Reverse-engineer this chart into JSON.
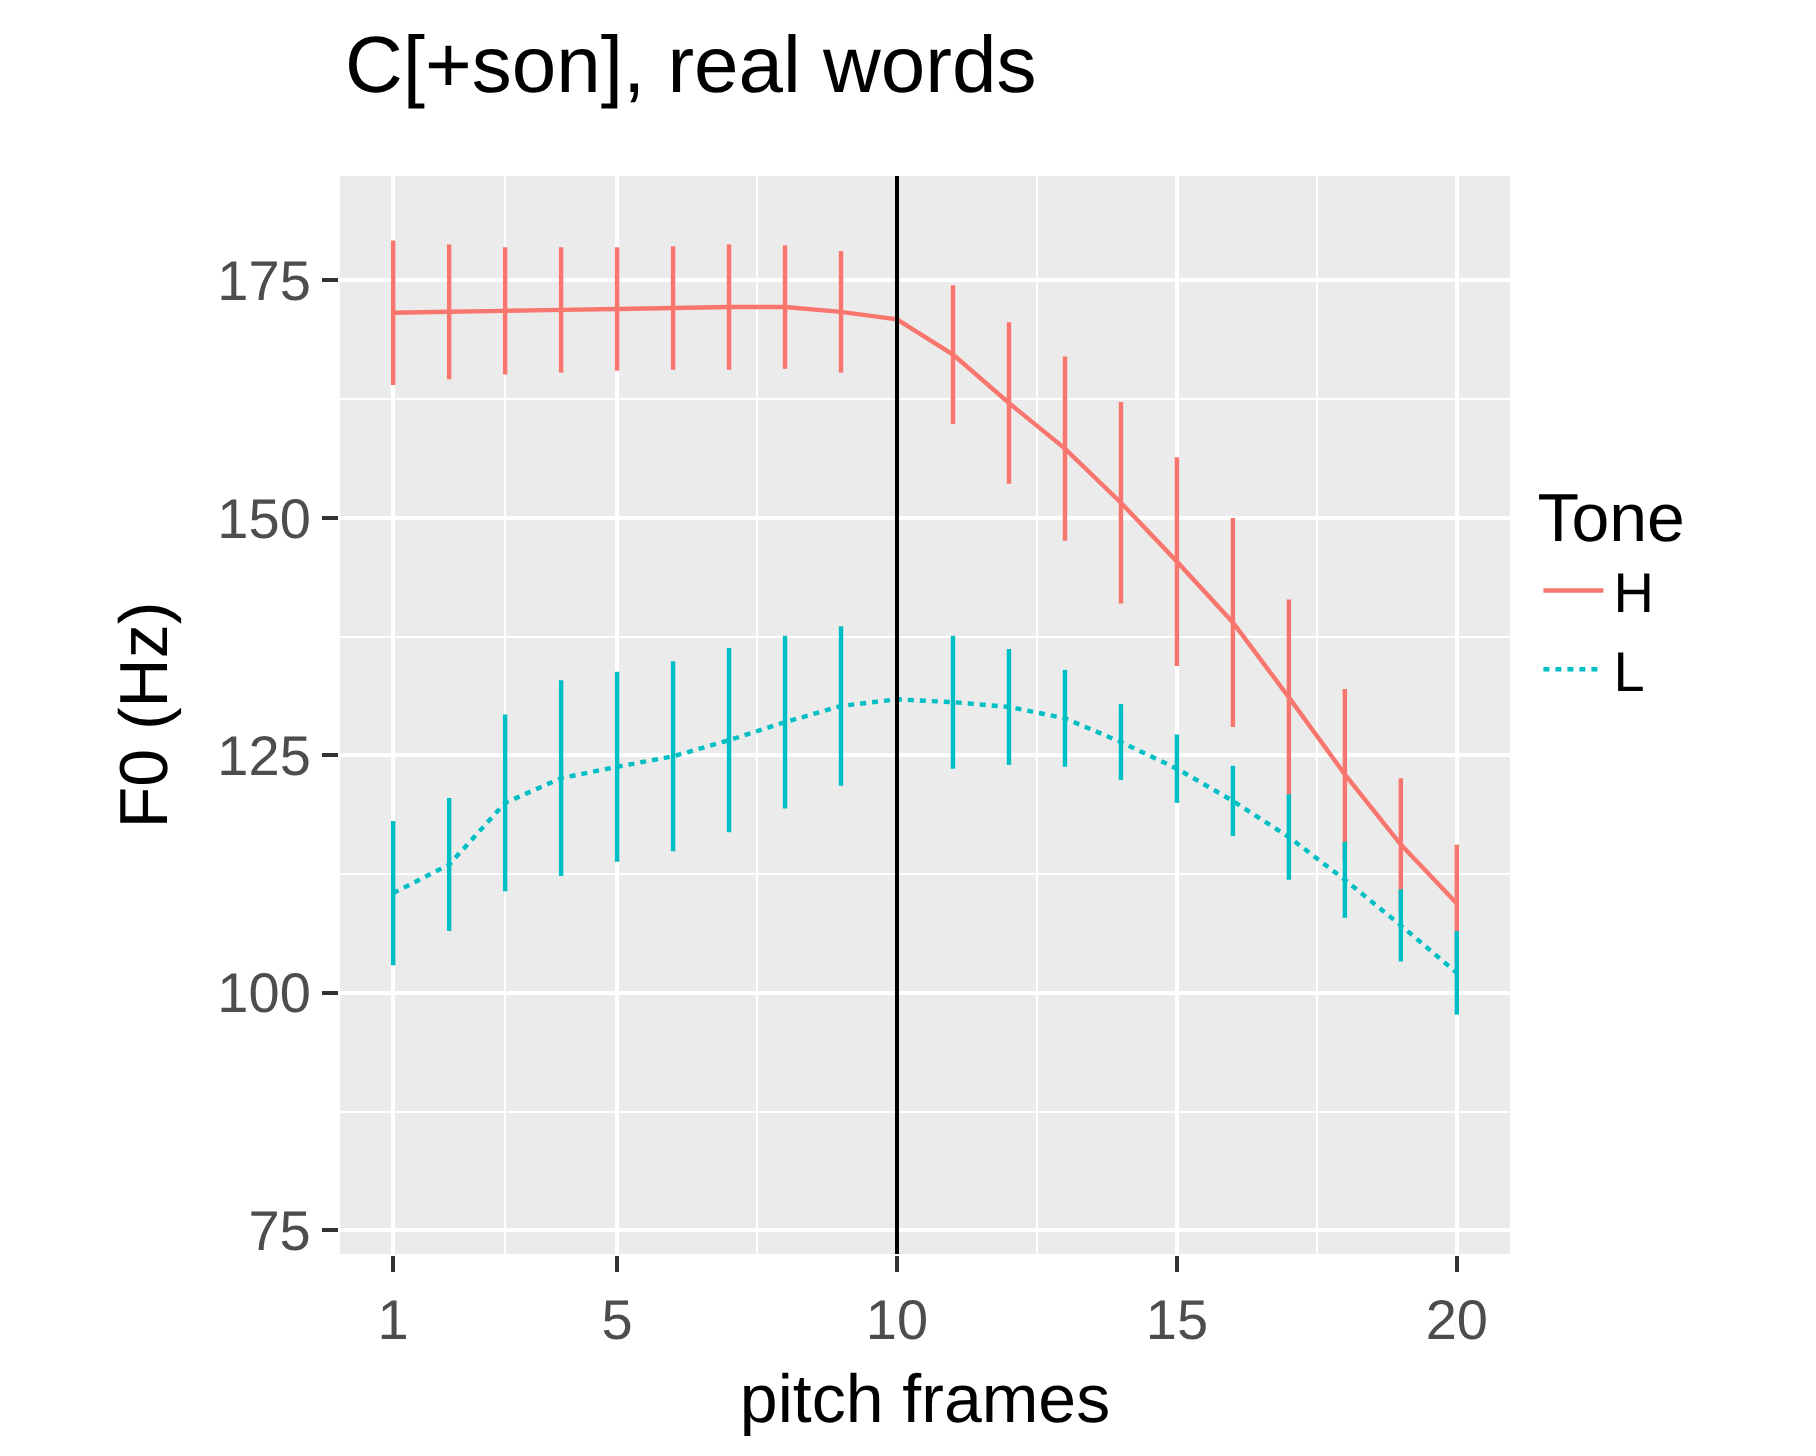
{
  "chart_data": {
    "type": "line",
    "title": "C[+son], real words",
    "xlabel": "pitch frames",
    "ylabel": "F0 (Hz)",
    "legend_title": "Tone",
    "x": [
      1,
      2,
      3,
      4,
      5,
      6,
      7,
      8,
      9,
      10,
      11,
      12,
      13,
      14,
      15,
      16,
      17,
      18,
      19,
      20
    ],
    "series": [
      {
        "name": "H",
        "color": "#f8766d",
        "line_style": "solid",
        "values": [
          171.6,
          171.7,
          171.8,
          171.9,
          172.0,
          172.1,
          172.2,
          172.2,
          171.7,
          170.9,
          167.2,
          162.1,
          157.3,
          151.6,
          145.4,
          139.0,
          131.1,
          123.0,
          115.6,
          109.4
        ],
        "errors": [
          7.6,
          7.1,
          6.7,
          6.6,
          6.5,
          6.5,
          6.6,
          6.5,
          6.4,
          null,
          7.3,
          8.5,
          9.7,
          10.6,
          11,
          11,
          10.3,
          9,
          7,
          6.2
        ]
      },
      {
        "name": "L",
        "color": "#00bfc4",
        "line_style": "dotted",
        "values": [
          110.5,
          113.5,
          120.0,
          122.6,
          123.8,
          124.9,
          126.6,
          128.5,
          130.2,
          130.9,
          130.6,
          130.1,
          128.9,
          126.4,
          123.6,
          120.2,
          116.4,
          111.9,
          107.1,
          102.1
        ],
        "errors": [
          7.6,
          7,
          9.3,
          10.3,
          10,
          10,
          9.7,
          9.1,
          8.4,
          null,
          7,
          6.1,
          5.1,
          4,
          3.6,
          3.7,
          4.5,
          4,
          3.8,
          4.4
        ]
      }
    ],
    "xlim": [
      0.05,
      20.95
    ],
    "xticks": [
      1,
      5,
      10,
      15,
      20
    ],
    "ylim": [
      72.5,
      186
    ],
    "yticks": [
      75,
      100,
      125,
      150,
      175
    ],
    "ref_lines": [
      {
        "axis": "x",
        "value": 10,
        "color": "#000000"
      }
    ],
    "grid": true,
    "legend": "right"
  }
}
